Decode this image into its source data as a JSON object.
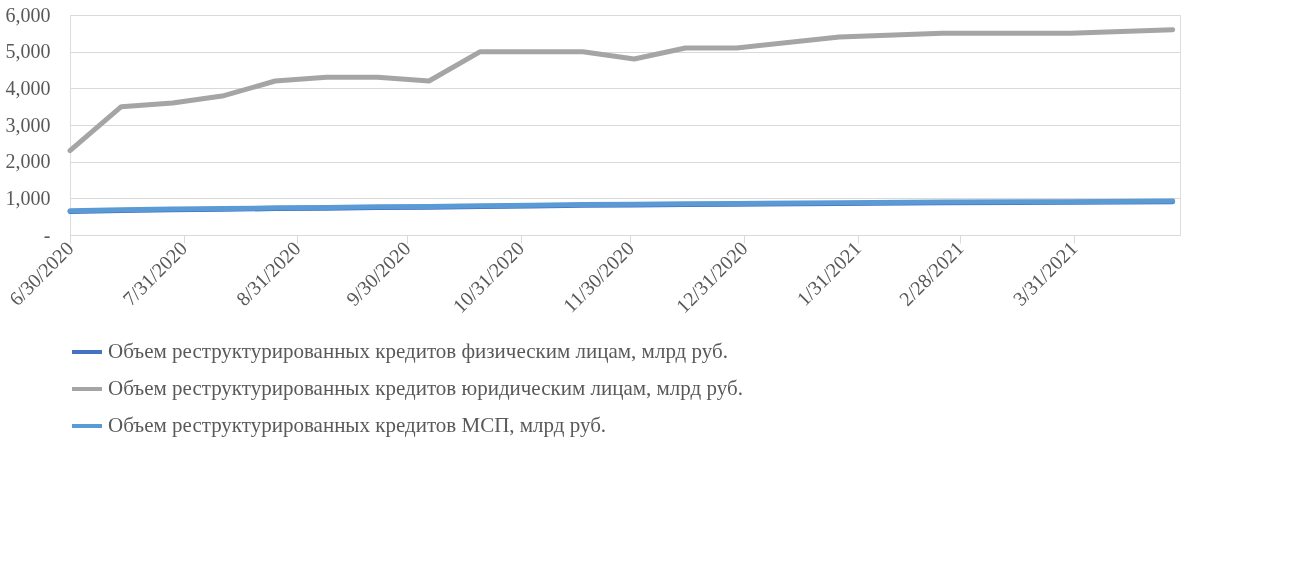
{
  "chart_data": {
    "type": "line",
    "x": [
      "2020-06-30",
      "2020-07-14",
      "2020-07-28",
      "2020-08-11",
      "2020-08-25",
      "2020-09-08",
      "2020-09-22",
      "2020-10-06",
      "2020-10-20",
      "2020-11-03",
      "2020-11-17",
      "2020-12-01",
      "2020-12-15",
      "2020-12-29",
      "2021-01-26",
      "2021-02-23",
      "2021-03-30",
      "2021-04-27"
    ],
    "series": [
      {
        "name": "Объем реструктурированных кредитов физическим лицам, млрд руб.",
        "color": "#4472c4",
        "values": [
          640,
          670,
          690,
          700,
          720,
          730,
          750,
          760,
          780,
          790,
          810,
          820,
          830,
          840,
          860,
          880,
          890,
          910
        ]
      },
      {
        "name": "Объем реструктурированных кредитов юридическим лицам, млрд руб.",
        "color": "#a5a5a5",
        "values": [
          2300,
          3500,
          3600,
          3800,
          4200,
          4300,
          4300,
          4200,
          5000,
          5000,
          5000,
          4800,
          5100,
          5100,
          5400,
          5500,
          5500,
          5600
        ]
      },
      {
        "name": "Объем реструктурированных кредитов МСП, млрд руб.",
        "color": "#5b9bd5",
        "values": [
          660,
          690,
          710,
          720,
          740,
          750,
          770,
          780,
          800,
          810,
          830,
          840,
          850,
          860,
          880,
          900,
          910,
          930
        ]
      }
    ],
    "xlim": [
      "2020-06-30",
      "2021-04-29"
    ],
    "xticks": [
      {
        "value": "2020-06-30",
        "label": "6/30/2020"
      },
      {
        "value": "2020-07-31",
        "label": "7/31/2020"
      },
      {
        "value": "2020-08-31",
        "label": "8/31/2020"
      },
      {
        "value": "2020-09-30",
        "label": "9/30/2020"
      },
      {
        "value": "2020-10-31",
        "label": "10/31/2020"
      },
      {
        "value": "2020-11-30",
        "label": "11/30/2020"
      },
      {
        "value": "2020-12-31",
        "label": "12/31/2020"
      },
      {
        "value": "2021-01-31",
        "label": "1/31/2021"
      },
      {
        "value": "2021-02-28",
        "label": "2/28/2021"
      },
      {
        "value": "2021-03-31",
        "label": "3/31/2021"
      }
    ],
    "ylim": [
      0,
      6000
    ],
    "yticks": [
      {
        "value": 0,
        "label": "-"
      },
      {
        "value": 1000,
        "label": "1,000"
      },
      {
        "value": 2000,
        "label": "2,000"
      },
      {
        "value": 3000,
        "label": "3,000"
      },
      {
        "value": 4000,
        "label": "4,000"
      },
      {
        "value": 5000,
        "label": "5,000"
      },
      {
        "value": 6000,
        "label": "6,000"
      }
    ],
    "grid": "y",
    "legend": "bottom",
    "marker": "none",
    "line_style": "solid"
  }
}
